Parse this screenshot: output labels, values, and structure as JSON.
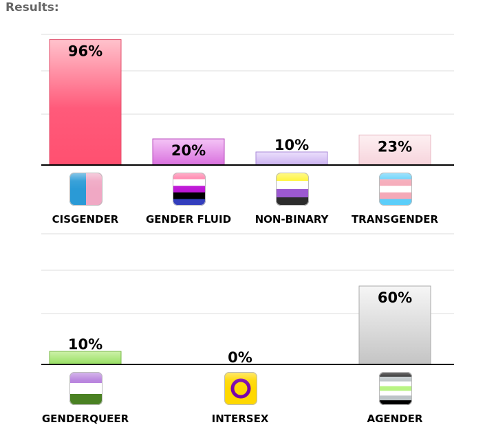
{
  "header": {
    "results_label": "Results:"
  },
  "colors": {
    "cisgender": "#ff5577",
    "gender_fluid": "#e58fe8",
    "non_binary": "#d9c6f5",
    "transgender": "#f8d9e0",
    "genderqueer": "#a9e57a",
    "intersex": "#ffd700",
    "agender": "#cccccc",
    "gridline": "#dddddd",
    "baseline": "#000000"
  },
  "chart_data": [
    {
      "type": "bar",
      "title": "",
      "xlabel": "",
      "ylabel": "",
      "ylim": [
        0,
        100
      ],
      "grid": true,
      "categories": [
        "CISGENDER",
        "GENDER FLUID",
        "NON-BINARY",
        "TRANSGENDER"
      ],
      "values": [
        96,
        20,
        10,
        23
      ],
      "value_labels": [
        "96%",
        "20%",
        "10%",
        "23%"
      ],
      "icons": [
        "cisgender-flag-icon",
        "gender-fluid-flag-icon",
        "non-binary-flag-icon",
        "transgender-flag-icon"
      ]
    },
    {
      "type": "bar",
      "title": "",
      "xlabel": "",
      "ylabel": "",
      "ylim": [
        0,
        100
      ],
      "grid": true,
      "categories": [
        "GENDERQUEER",
        "INTERSEX",
        "AGENDER"
      ],
      "values": [
        10,
        0,
        60
      ],
      "value_labels": [
        "10%",
        "0%",
        "60%"
      ],
      "icons": [
        "genderqueer-flag-icon",
        "intersex-flag-icon",
        "agender-flag-icon"
      ]
    }
  ]
}
